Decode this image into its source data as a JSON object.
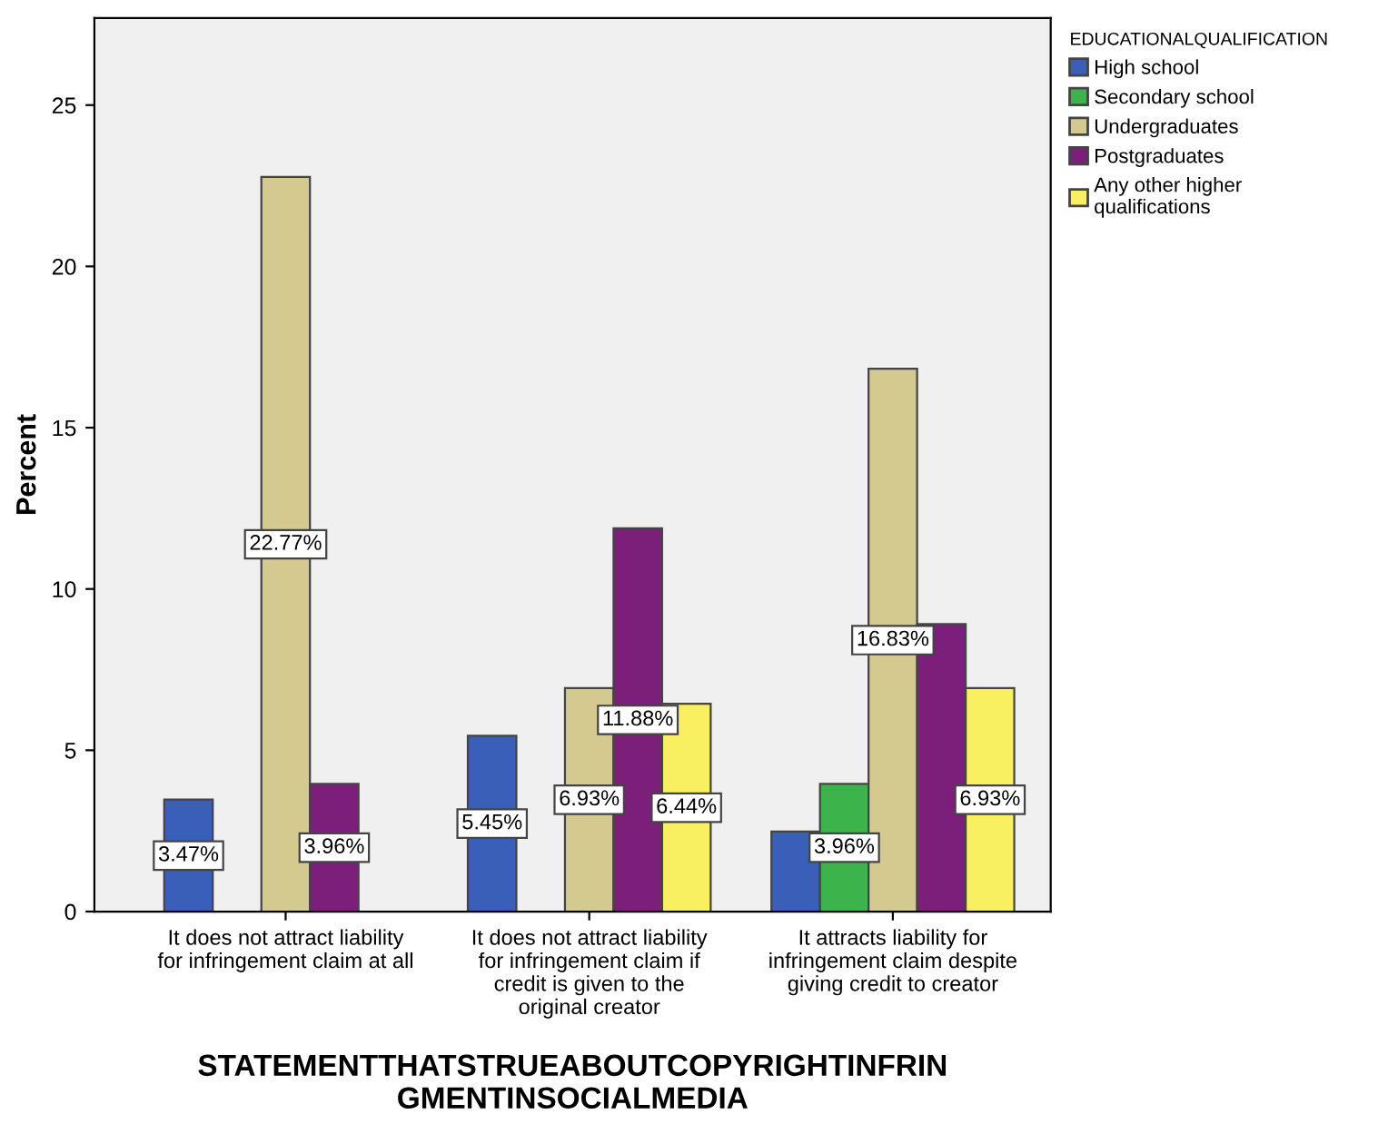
{
  "chart_data": {
    "type": "bar",
    "ylabel": "Percent",
    "xlabel": "STATEMENTTHATSTRUEABOUTCOPYRIGHTINFRIN\nGMENTINSOCIALMEDIA",
    "legend_title": "EDUCATIONALQUALIFICATION",
    "categories": [
      "It does not attract liability\nfor infringement claim at all",
      "It does not attract liability\nfor infringement claim if\ncredit is given to the\noriginal creator",
      "It attracts liability for\ninfringement claim despite\ngiving credit to creator"
    ],
    "series": [
      {
        "name": "High school",
        "color": "#3a5fb8",
        "values": [
          3.47,
          5.45,
          2.48
        ],
        "value_labels": [
          "3.47%",
          "5.45%",
          null
        ]
      },
      {
        "name": "Secondary school",
        "color": "#3cb44b",
        "values": [
          null,
          null,
          3.96
        ],
        "value_labels": [
          null,
          null,
          "3.96%"
        ]
      },
      {
        "name": "Undergraduates",
        "color": "#d4c98f",
        "values": [
          22.77,
          6.93,
          16.83
        ],
        "value_labels": [
          "22.77%",
          "6.93%",
          "16.83%"
        ]
      },
      {
        "name": "Postgraduates",
        "color": "#7b1f7b",
        "values": [
          3.96,
          11.88,
          8.91
        ],
        "value_labels": [
          "3.96%",
          "11.88%",
          null
        ]
      },
      {
        "name": "Any other higher\nqualifications",
        "color": "#f8f060",
        "values": [
          null,
          6.44,
          6.93
        ],
        "value_labels": [
          null,
          "6.44%",
          "6.93%"
        ]
      }
    ],
    "ylim": [
      0,
      27.7
    ],
    "yticks": [
      0,
      5,
      10,
      15,
      20,
      25
    ],
    "grid": false,
    "legend": "top right"
  }
}
